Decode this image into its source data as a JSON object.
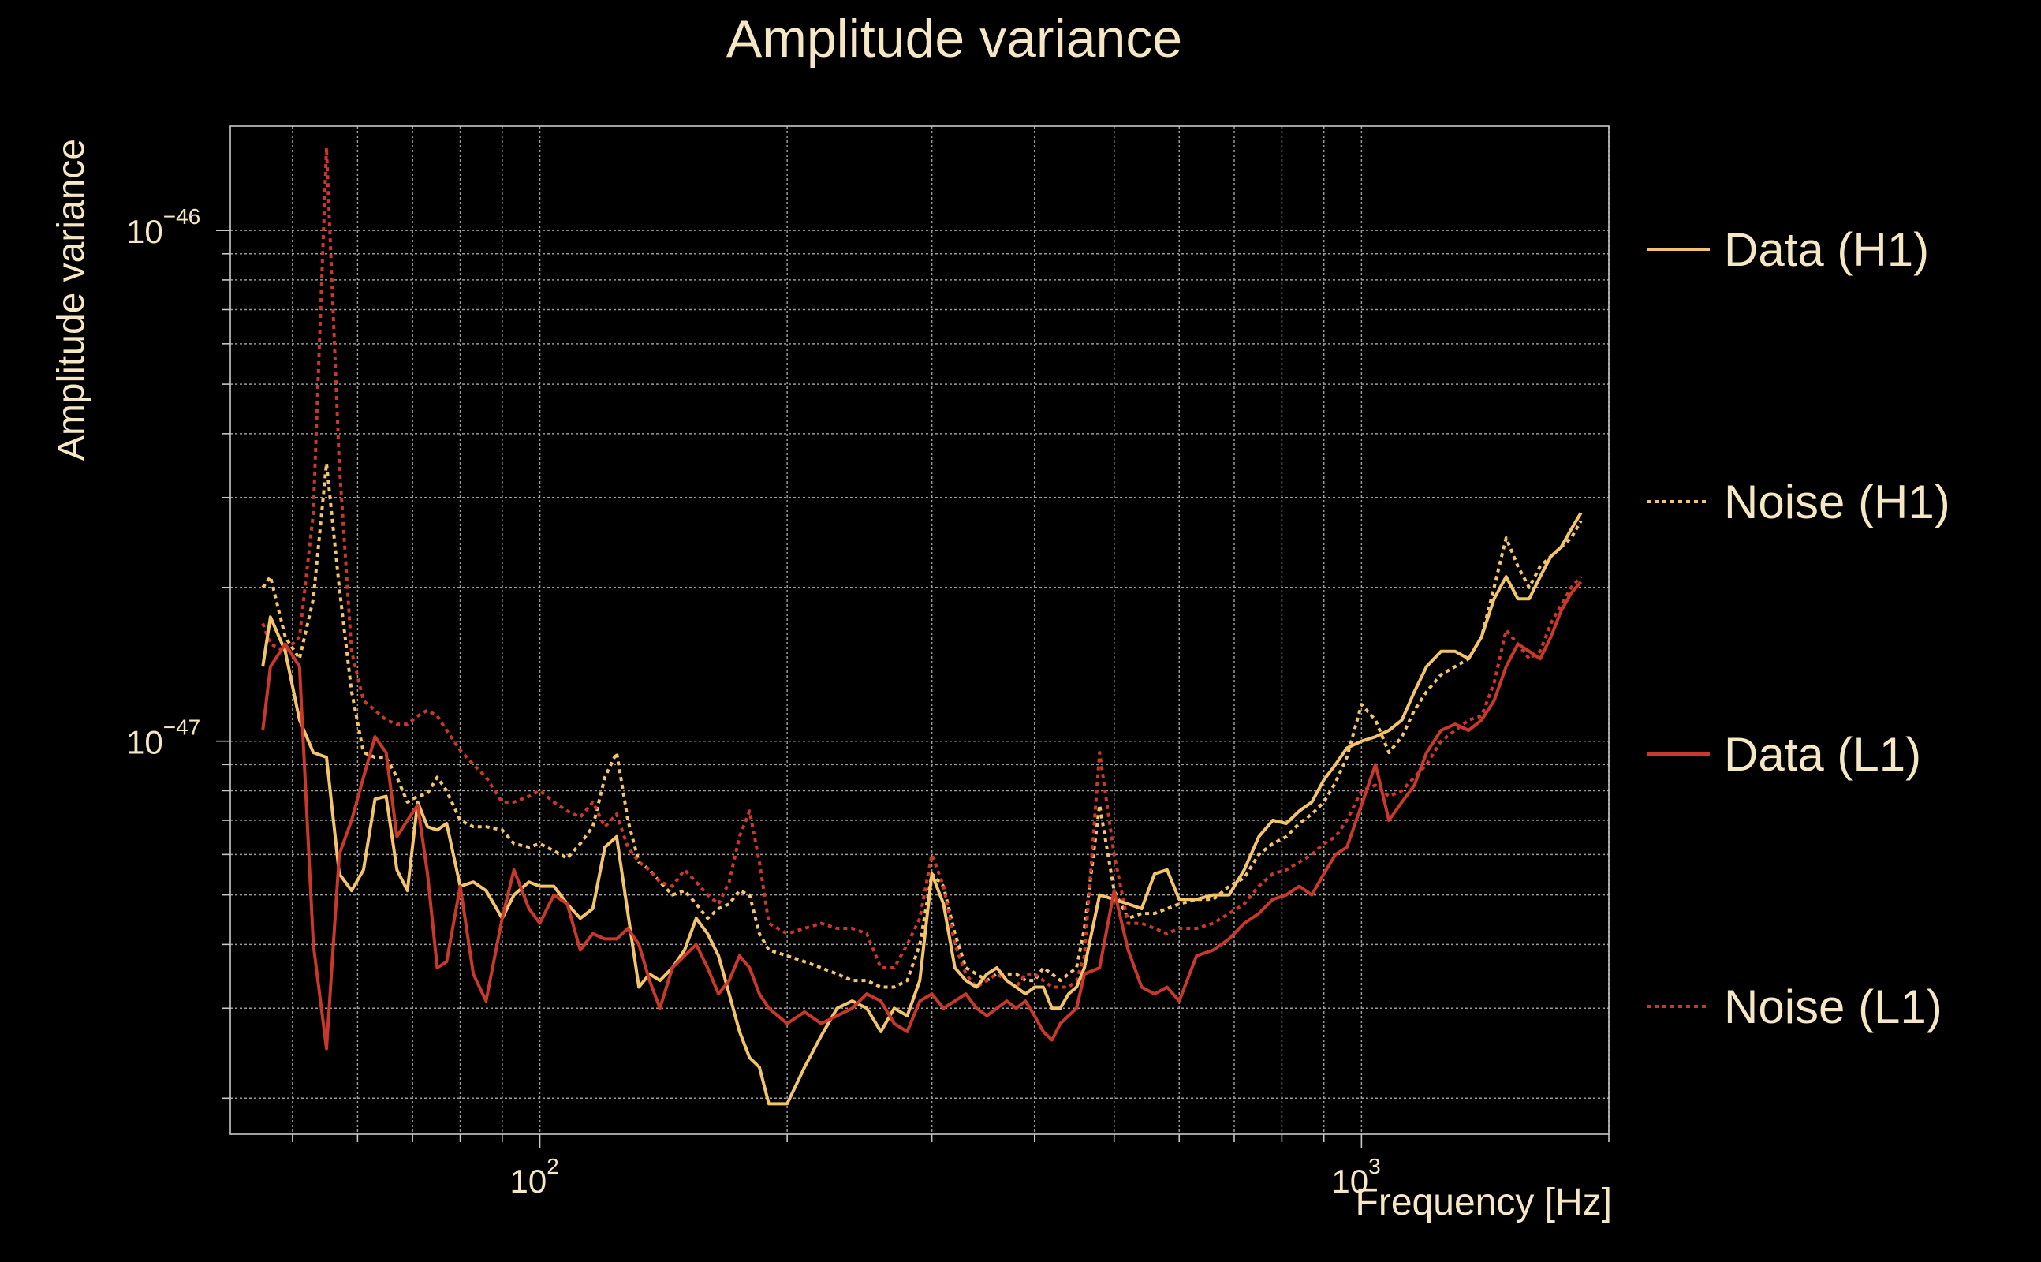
{
  "chart_data": {
    "type": "line",
    "title": "Amplitude variance",
    "xlabel": "Frequency [Hz]",
    "ylabel": "Amplitude variance",
    "xscale": "log",
    "yscale": "log",
    "xlim": [
      42,
      2000
    ],
    "ylim": [
      1.7e-48,
      1.6e-46
    ],
    "x_ticks": [
      {
        "base": "10",
        "exp": "2",
        "value": 100
      },
      {
        "base": "10",
        "exp": "3",
        "value": 1000
      }
    ],
    "y_ticks": [
      {
        "base": "10",
        "exp": "−46",
        "value": 1e-46
      },
      {
        "base": "10",
        "exp": "−47",
        "value": 1e-47
      }
    ],
    "grid": true,
    "legend_position": "right",
    "colors": {
      "h1": "#f2c46b",
      "l1": "#c8392b",
      "background": "#000000",
      "text": "#f5e6c4"
    },
    "series": [
      {
        "name": "Data (H1)",
        "color": "#f2c46b",
        "dash": "solid",
        "x": [
          46,
          47,
          49,
          51,
          53,
          55,
          57,
          59,
          61,
          63,
          65,
          67,
          69,
          71,
          73,
          75,
          77,
          80,
          83,
          86,
          90,
          93,
          97,
          100,
          104,
          108,
          112,
          116,
          120,
          124,
          128,
          132,
          136,
          140,
          145,
          150,
          155,
          160,
          165,
          170,
          175,
          180,
          185,
          190,
          200,
          210,
          220,
          230,
          240,
          250,
          260,
          270,
          280,
          290,
          300,
          310,
          320,
          330,
          340,
          350,
          360,
          370,
          380,
          390,
          400,
          410,
          420,
          430,
          440,
          450,
          460,
          480,
          500,
          520,
          540,
          560,
          580,
          600,
          630,
          660,
          690,
          720,
          750,
          780,
          810,
          840,
          870,
          900,
          930,
          960,
          1000,
          1040,
          1080,
          1120,
          1160,
          1200,
          1250,
          1300,
          1350,
          1400,
          1450,
          1500,
          1550,
          1600,
          1650,
          1700,
          1750,
          1800,
          1850
        ],
        "y": [
          1.4e-47,
          1.75e-47,
          1.5e-47,
          1.1e-47,
          9.5e-48,
          9.3e-48,
          5.5e-48,
          5.1e-48,
          5.6e-48,
          7.7e-48,
          7.8e-48,
          5.6e-48,
          5.1e-48,
          7.6e-48,
          6.8e-48,
          6.7e-48,
          6.9e-48,
          5.2e-48,
          5.3e-48,
          5.1e-48,
          4.5e-48,
          5e-48,
          5.3e-48,
          5.2e-48,
          5.2e-48,
          4.8e-48,
          4.5e-48,
          4.7e-48,
          6.2e-48,
          6.5e-48,
          4.6e-48,
          3.3e-48,
          3.5e-48,
          3.4e-48,
          3.6e-48,
          3.9e-48,
          4.5e-48,
          4.2e-48,
          3.8e-48,
          3.2e-48,
          2.7e-48,
          2.4e-48,
          2.3e-48,
          1.95e-48,
          1.95e-48,
          2.3e-48,
          2.65e-48,
          3e-48,
          3.1e-48,
          3e-48,
          2.7e-48,
          3e-48,
          2.9e-48,
          3.4e-48,
          5.5e-48,
          4.8e-48,
          3.6e-48,
          3.4e-48,
          3.3e-48,
          3.5e-48,
          3.6e-48,
          3.4e-48,
          3.3e-48,
          3.2e-48,
          3.3e-48,
          3.3e-48,
          3e-48,
          3e-48,
          3.2e-48,
          3.3e-48,
          3.6e-48,
          5e-48,
          4.9e-48,
          4.8e-48,
          4.7e-48,
          5.5e-48,
          5.6e-48,
          4.9e-48,
          4.9e-48,
          5e-48,
          5e-48,
          5.6e-48,
          6.5e-48,
          7e-48,
          6.9e-48,
          7.3e-48,
          7.6e-48,
          8.4e-48,
          9e-48,
          9.7e-48,
          1e-47,
          1.02e-47,
          1.05e-47,
          1.1e-47,
          1.25e-47,
          1.4e-47,
          1.5e-47,
          1.5e-47,
          1.45e-47,
          1.6e-47,
          1.9e-47,
          2.1e-47,
          1.9e-47,
          1.9e-47,
          2.1e-47,
          2.3e-47,
          2.4e-47,
          2.6e-47,
          2.8e-47
        ]
      },
      {
        "name": "Noise (H1)",
        "color": "#f2c46b",
        "dash": "dotted",
        "x": [
          46,
          47,
          49,
          51,
          53,
          55,
          57,
          59,
          61,
          63,
          65,
          67,
          69,
          71,
          73,
          75,
          77,
          80,
          83,
          86,
          90,
          93,
          97,
          100,
          104,
          108,
          112,
          116,
          120,
          124,
          128,
          132,
          136,
          140,
          145,
          150,
          155,
          160,
          165,
          170,
          175,
          180,
          185,
          190,
          200,
          210,
          220,
          230,
          240,
          250,
          260,
          270,
          280,
          290,
          300,
          310,
          320,
          330,
          340,
          350,
          360,
          370,
          380,
          390,
          400,
          410,
          420,
          430,
          440,
          450,
          460,
          480,
          500,
          520,
          540,
          560,
          580,
          600,
          630,
          660,
          690,
          720,
          750,
          780,
          810,
          840,
          870,
          900,
          930,
          960,
          1000,
          1040,
          1080,
          1120,
          1160,
          1200,
          1250,
          1300,
          1350,
          1400,
          1450,
          1500,
          1550,
          1600,
          1650,
          1700,
          1750,
          1800,
          1850
        ],
        "y": [
          2e-47,
          2.1e-47,
          1.6e-47,
          1.45e-47,
          1.9e-47,
          3.5e-47,
          2e-47,
          1.25e-47,
          9.5e-48,
          9.3e-48,
          9.3e-48,
          8.5e-48,
          7.6e-48,
          7.8e-48,
          7.9e-48,
          8.5e-48,
          8e-48,
          7e-48,
          6.8e-48,
          6.8e-48,
          6.7e-48,
          6.3e-48,
          6.2e-48,
          6.3e-48,
          6.1e-48,
          5.9e-48,
          6.3e-48,
          6.8e-48,
          8.5e-48,
          9.5e-48,
          7e-48,
          5.8e-48,
          5.6e-48,
          5.3e-48,
          5e-48,
          5.1e-48,
          4.8e-48,
          4.5e-48,
          4.7e-48,
          4.8e-48,
          5.1e-48,
          5e-48,
          4.2e-48,
          3.9e-48,
          3.8e-48,
          3.7e-48,
          3.6e-48,
          3.5e-48,
          3.4e-48,
          3.4e-48,
          3.3e-48,
          3.3e-48,
          3.4e-48,
          4e-48,
          5.5e-48,
          5.2e-48,
          4.2e-48,
          3.6e-48,
          3.5e-48,
          3.4e-48,
          3.5e-48,
          3.5e-48,
          3.5e-48,
          3.4e-48,
          3.4e-48,
          3.6e-48,
          3.5e-48,
          3.4e-48,
          3.5e-48,
          3.6e-48,
          4.3e-48,
          7.5e-48,
          5.1e-48,
          4.5e-48,
          4.6e-48,
          4.6e-48,
          4.7e-48,
          4.8e-48,
          4.9e-48,
          4.9e-48,
          5.2e-48,
          5.4e-48,
          6e-48,
          6.3e-48,
          6.5e-48,
          6.9e-48,
          7.2e-48,
          7.6e-48,
          8.3e-48,
          9.3e-48,
          1.18e-47,
          1.1e-47,
          9.5e-48,
          1.02e-47,
          1.15e-47,
          1.25e-47,
          1.35e-47,
          1.4e-47,
          1.45e-47,
          1.6e-47,
          2e-47,
          2.5e-47,
          2.2e-47,
          2e-47,
          2.2e-47,
          2.3e-47,
          2.4e-47,
          2.5e-47,
          2.7e-47
        ]
      },
      {
        "name": "Data (L1)",
        "color": "#c8392b",
        "dash": "solid",
        "x": [
          46,
          47,
          49,
          51,
          53,
          55,
          57,
          59,
          61,
          63,
          65,
          67,
          69,
          71,
          73,
          75,
          77,
          80,
          83,
          86,
          90,
          93,
          97,
          100,
          104,
          108,
          112,
          116,
          120,
          124,
          128,
          132,
          136,
          140,
          145,
          150,
          155,
          160,
          165,
          170,
          175,
          180,
          185,
          190,
          200,
          210,
          220,
          230,
          240,
          250,
          260,
          270,
          280,
          290,
          300,
          310,
          320,
          330,
          340,
          350,
          360,
          370,
          380,
          390,
          400,
          410,
          420,
          430,
          440,
          450,
          460,
          480,
          500,
          520,
          540,
          560,
          580,
          600,
          630,
          660,
          690,
          720,
          750,
          780,
          810,
          840,
          870,
          900,
          930,
          960,
          1000,
          1040,
          1080,
          1120,
          1160,
          1200,
          1250,
          1300,
          1350,
          1400,
          1450,
          1500,
          1550,
          1600,
          1650,
          1700,
          1750,
          1800,
          1850
        ],
        "y": [
          1.05e-47,
          1.4e-47,
          1.55e-47,
          1.4e-47,
          4e-48,
          2.5e-48,
          6e-48,
          7e-48,
          8.5e-48,
          1.02e-47,
          9.5e-48,
          6.5e-48,
          7e-48,
          7.5e-48,
          5.5e-48,
          3.6e-48,
          3.7e-48,
          5.2e-48,
          3.5e-48,
          3.1e-48,
          4.5e-48,
          5.6e-48,
          4.7e-48,
          4.4e-48,
          5e-48,
          4.8e-48,
          3.9e-48,
          4.2e-48,
          4.1e-48,
          4.1e-48,
          4.3e-48,
          4e-48,
          3.4e-48,
          3e-48,
          3.6e-48,
          3.8e-48,
          4e-48,
          3.6e-48,
          3.2e-48,
          3.4e-48,
          3.8e-48,
          3.6e-48,
          3.2e-48,
          3e-48,
          2.8e-48,
          2.95e-48,
          2.8e-48,
          2.9e-48,
          3e-48,
          3.2e-48,
          3.1e-48,
          2.8e-48,
          2.7e-48,
          3.1e-48,
          3.2e-48,
          3e-48,
          3.1e-48,
          3.2e-48,
          3e-48,
          2.9e-48,
          3e-48,
          3.1e-48,
          3e-48,
          3.1e-48,
          2.9e-48,
          2.7e-48,
          2.6e-48,
          2.8e-48,
          2.9e-48,
          3e-48,
          3.5e-48,
          3.6e-48,
          5.1e-48,
          3.9e-48,
          3.3e-48,
          3.2e-48,
          3.3e-48,
          3.1e-48,
          3.8e-48,
          3.9e-48,
          4.1e-48,
          4.4e-48,
          4.6e-48,
          4.9e-48,
          5e-48,
          5.2e-48,
          5e-48,
          5.5e-48,
          6e-48,
          6.2e-48,
          7.5e-48,
          9e-48,
          7e-48,
          7.6e-48,
          8.2e-48,
          9.5e-48,
          1.05e-47,
          1.08e-47,
          1.05e-47,
          1.1e-47,
          1.2e-47,
          1.4e-47,
          1.55e-47,
          1.5e-47,
          1.45e-47,
          1.6e-47,
          1.8e-47,
          1.95e-47,
          2.05e-47
        ]
      },
      {
        "name": "Noise (L1)",
        "color": "#c8392b",
        "dash": "dotted",
        "x": [
          46,
          47,
          49,
          51,
          53,
          55,
          57,
          59,
          61,
          63,
          65,
          67,
          69,
          71,
          73,
          75,
          77,
          80,
          83,
          86,
          90,
          93,
          97,
          100,
          104,
          108,
          112,
          116,
          120,
          124,
          128,
          132,
          136,
          140,
          145,
          150,
          155,
          160,
          165,
          170,
          175,
          180,
          185,
          190,
          200,
          210,
          220,
          230,
          240,
          250,
          260,
          270,
          280,
          290,
          300,
          310,
          320,
          330,
          340,
          350,
          360,
          370,
          380,
          390,
          400,
          410,
          420,
          430,
          440,
          450,
          460,
          480,
          500,
          520,
          540,
          560,
          580,
          600,
          630,
          660,
          690,
          720,
          750,
          780,
          810,
          840,
          870,
          900,
          930,
          960,
          1000,
          1040,
          1080,
          1120,
          1160,
          1200,
          1250,
          1300,
          1350,
          1400,
          1450,
          1500,
          1550,
          1600,
          1650,
          1700,
          1750,
          1800,
          1850
        ],
        "y": [
          1.7e-47,
          1.55e-47,
          1.5e-47,
          1.6e-47,
          2.8e-47,
          1.45e-46,
          3.5e-47,
          1.5e-47,
          1.2e-47,
          1.15e-47,
          1.1e-47,
          1.08e-47,
          1.08e-47,
          1.12e-47,
          1.15e-47,
          1.12e-47,
          1.05e-47,
          9.6e-48,
          9e-48,
          8.5e-48,
          7.6e-48,
          7.6e-48,
          7.8e-48,
          8e-48,
          7.6e-48,
          7.3e-48,
          7.1e-48,
          7.6e-48,
          6.8e-48,
          7.2e-48,
          6.2e-48,
          5.8e-48,
          5.6e-48,
          5.3e-48,
          5.2e-48,
          5.6e-48,
          5.3e-48,
          5e-48,
          4.8e-48,
          5.3e-48,
          6.5e-48,
          7.3e-48,
          5.8e-48,
          4.4e-48,
          4.2e-48,
          4.3e-48,
          4.4e-48,
          4.3e-48,
          4.3e-48,
          4.2e-48,
          3.6e-48,
          3.6e-48,
          4e-48,
          4.5e-48,
          6e-48,
          5.2e-48,
          4e-48,
          3.5e-48,
          3.3e-48,
          3.4e-48,
          3.5e-48,
          3.4e-48,
          3.3e-48,
          3.5e-48,
          3.5e-48,
          3.4e-48,
          3.3e-48,
          3.3e-48,
          3.3e-48,
          3.4e-48,
          3.8e-48,
          9.5e-48,
          6e-48,
          4.4e-48,
          4.4e-48,
          4.3e-48,
          4.2e-48,
          4.3e-48,
          4.3e-48,
          4.4e-48,
          4.6e-48,
          4.8e-48,
          5.2e-48,
          5.5e-48,
          5.6e-48,
          5.8e-48,
          6e-48,
          6.3e-48,
          6.5e-48,
          7e-48,
          8e-48,
          8.2e-48,
          7.8e-48,
          8e-48,
          8.5e-48,
          9e-48,
          1e-47,
          1.05e-47,
          1.1e-47,
          1.12e-47,
          1.3e-47,
          1.65e-47,
          1.55e-47,
          1.45e-47,
          1.5e-47,
          1.7e-47,
          1.85e-47,
          2e-47,
          2.1e-47
        ]
      }
    ]
  }
}
